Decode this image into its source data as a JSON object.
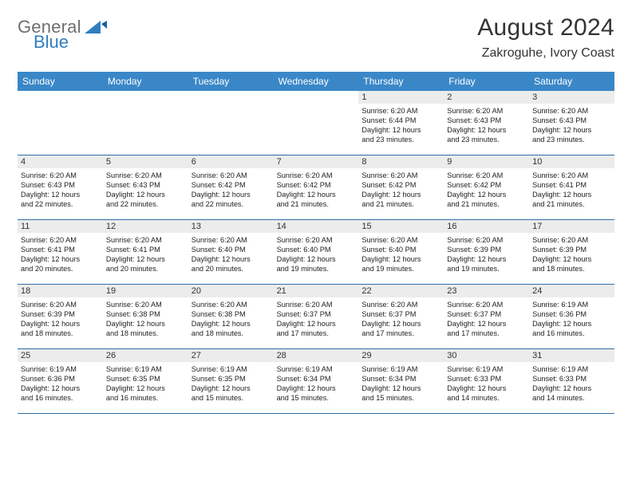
{
  "brand": {
    "name_a": "General",
    "name_b": "Blue"
  },
  "title": "August 2024",
  "location": "Zakroguhe, Ivory Coast",
  "colors": {
    "header_bg": "#3a87c8",
    "header_text": "#ffffff",
    "daynum_bg": "#ececec",
    "week_border": "#2f6fa6",
    "title_color": "#333333",
    "logo_gray": "#6e6e6e",
    "logo_blue": "#2f7fc1",
    "body_text": "#222222",
    "background": "#ffffff"
  },
  "typography": {
    "title_fontsize": 30,
    "subtitle_fontsize": 16,
    "dayheader_fontsize": 12,
    "daynum_fontsize": 11,
    "info_fontsize": 9.2
  },
  "day_headers": [
    "Sunday",
    "Monday",
    "Tuesday",
    "Wednesday",
    "Thursday",
    "Friday",
    "Saturday"
  ],
  "weeks": [
    [
      {
        "num": "",
        "sunrise": "",
        "sunset": "",
        "day_a": "",
        "day_b": ""
      },
      {
        "num": "",
        "sunrise": "",
        "sunset": "",
        "day_a": "",
        "day_b": ""
      },
      {
        "num": "",
        "sunrise": "",
        "sunset": "",
        "day_a": "",
        "day_b": ""
      },
      {
        "num": "",
        "sunrise": "",
        "sunset": "",
        "day_a": "",
        "day_b": ""
      },
      {
        "num": "1",
        "sunrise": "Sunrise: 6:20 AM",
        "sunset": "Sunset: 6:44 PM",
        "day_a": "Daylight: 12 hours",
        "day_b": "and 23 minutes."
      },
      {
        "num": "2",
        "sunrise": "Sunrise: 6:20 AM",
        "sunset": "Sunset: 6:43 PM",
        "day_a": "Daylight: 12 hours",
        "day_b": "and 23 minutes."
      },
      {
        "num": "3",
        "sunrise": "Sunrise: 6:20 AM",
        "sunset": "Sunset: 6:43 PM",
        "day_a": "Daylight: 12 hours",
        "day_b": "and 23 minutes."
      }
    ],
    [
      {
        "num": "4",
        "sunrise": "Sunrise: 6:20 AM",
        "sunset": "Sunset: 6:43 PM",
        "day_a": "Daylight: 12 hours",
        "day_b": "and 22 minutes."
      },
      {
        "num": "5",
        "sunrise": "Sunrise: 6:20 AM",
        "sunset": "Sunset: 6:43 PM",
        "day_a": "Daylight: 12 hours",
        "day_b": "and 22 minutes."
      },
      {
        "num": "6",
        "sunrise": "Sunrise: 6:20 AM",
        "sunset": "Sunset: 6:42 PM",
        "day_a": "Daylight: 12 hours",
        "day_b": "and 22 minutes."
      },
      {
        "num": "7",
        "sunrise": "Sunrise: 6:20 AM",
        "sunset": "Sunset: 6:42 PM",
        "day_a": "Daylight: 12 hours",
        "day_b": "and 21 minutes."
      },
      {
        "num": "8",
        "sunrise": "Sunrise: 6:20 AM",
        "sunset": "Sunset: 6:42 PM",
        "day_a": "Daylight: 12 hours",
        "day_b": "and 21 minutes."
      },
      {
        "num": "9",
        "sunrise": "Sunrise: 6:20 AM",
        "sunset": "Sunset: 6:42 PM",
        "day_a": "Daylight: 12 hours",
        "day_b": "and 21 minutes."
      },
      {
        "num": "10",
        "sunrise": "Sunrise: 6:20 AM",
        "sunset": "Sunset: 6:41 PM",
        "day_a": "Daylight: 12 hours",
        "day_b": "and 21 minutes."
      }
    ],
    [
      {
        "num": "11",
        "sunrise": "Sunrise: 6:20 AM",
        "sunset": "Sunset: 6:41 PM",
        "day_a": "Daylight: 12 hours",
        "day_b": "and 20 minutes."
      },
      {
        "num": "12",
        "sunrise": "Sunrise: 6:20 AM",
        "sunset": "Sunset: 6:41 PM",
        "day_a": "Daylight: 12 hours",
        "day_b": "and 20 minutes."
      },
      {
        "num": "13",
        "sunrise": "Sunrise: 6:20 AM",
        "sunset": "Sunset: 6:40 PM",
        "day_a": "Daylight: 12 hours",
        "day_b": "and 20 minutes."
      },
      {
        "num": "14",
        "sunrise": "Sunrise: 6:20 AM",
        "sunset": "Sunset: 6:40 PM",
        "day_a": "Daylight: 12 hours",
        "day_b": "and 19 minutes."
      },
      {
        "num": "15",
        "sunrise": "Sunrise: 6:20 AM",
        "sunset": "Sunset: 6:40 PM",
        "day_a": "Daylight: 12 hours",
        "day_b": "and 19 minutes."
      },
      {
        "num": "16",
        "sunrise": "Sunrise: 6:20 AM",
        "sunset": "Sunset: 6:39 PM",
        "day_a": "Daylight: 12 hours",
        "day_b": "and 19 minutes."
      },
      {
        "num": "17",
        "sunrise": "Sunrise: 6:20 AM",
        "sunset": "Sunset: 6:39 PM",
        "day_a": "Daylight: 12 hours",
        "day_b": "and 18 minutes."
      }
    ],
    [
      {
        "num": "18",
        "sunrise": "Sunrise: 6:20 AM",
        "sunset": "Sunset: 6:39 PM",
        "day_a": "Daylight: 12 hours",
        "day_b": "and 18 minutes."
      },
      {
        "num": "19",
        "sunrise": "Sunrise: 6:20 AM",
        "sunset": "Sunset: 6:38 PM",
        "day_a": "Daylight: 12 hours",
        "day_b": "and 18 minutes."
      },
      {
        "num": "20",
        "sunrise": "Sunrise: 6:20 AM",
        "sunset": "Sunset: 6:38 PM",
        "day_a": "Daylight: 12 hours",
        "day_b": "and 18 minutes."
      },
      {
        "num": "21",
        "sunrise": "Sunrise: 6:20 AM",
        "sunset": "Sunset: 6:37 PM",
        "day_a": "Daylight: 12 hours",
        "day_b": "and 17 minutes."
      },
      {
        "num": "22",
        "sunrise": "Sunrise: 6:20 AM",
        "sunset": "Sunset: 6:37 PM",
        "day_a": "Daylight: 12 hours",
        "day_b": "and 17 minutes."
      },
      {
        "num": "23",
        "sunrise": "Sunrise: 6:20 AM",
        "sunset": "Sunset: 6:37 PM",
        "day_a": "Daylight: 12 hours",
        "day_b": "and 17 minutes."
      },
      {
        "num": "24",
        "sunrise": "Sunrise: 6:19 AM",
        "sunset": "Sunset: 6:36 PM",
        "day_a": "Daylight: 12 hours",
        "day_b": "and 16 minutes."
      }
    ],
    [
      {
        "num": "25",
        "sunrise": "Sunrise: 6:19 AM",
        "sunset": "Sunset: 6:36 PM",
        "day_a": "Daylight: 12 hours",
        "day_b": "and 16 minutes."
      },
      {
        "num": "26",
        "sunrise": "Sunrise: 6:19 AM",
        "sunset": "Sunset: 6:35 PM",
        "day_a": "Daylight: 12 hours",
        "day_b": "and 16 minutes."
      },
      {
        "num": "27",
        "sunrise": "Sunrise: 6:19 AM",
        "sunset": "Sunset: 6:35 PM",
        "day_a": "Daylight: 12 hours",
        "day_b": "and 15 minutes."
      },
      {
        "num": "28",
        "sunrise": "Sunrise: 6:19 AM",
        "sunset": "Sunset: 6:34 PM",
        "day_a": "Daylight: 12 hours",
        "day_b": "and 15 minutes."
      },
      {
        "num": "29",
        "sunrise": "Sunrise: 6:19 AM",
        "sunset": "Sunset: 6:34 PM",
        "day_a": "Daylight: 12 hours",
        "day_b": "and 15 minutes."
      },
      {
        "num": "30",
        "sunrise": "Sunrise: 6:19 AM",
        "sunset": "Sunset: 6:33 PM",
        "day_a": "Daylight: 12 hours",
        "day_b": "and 14 minutes."
      },
      {
        "num": "31",
        "sunrise": "Sunrise: 6:19 AM",
        "sunset": "Sunset: 6:33 PM",
        "day_a": "Daylight: 12 hours",
        "day_b": "and 14 minutes."
      }
    ]
  ]
}
